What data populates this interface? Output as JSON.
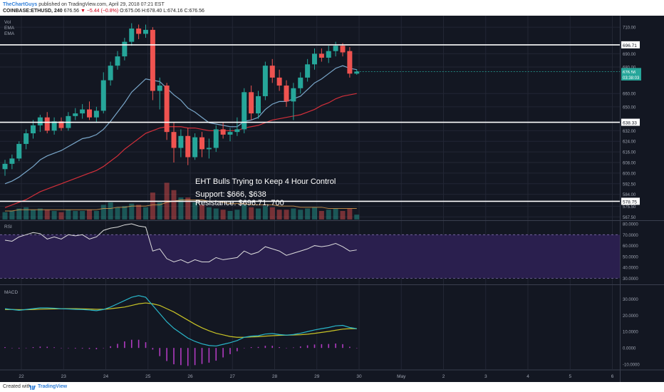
{
  "header": {
    "author": "TheChartGuys",
    "published_text": "published on TradingView.com, April 29, 2018 07:21 EST",
    "symbol": "COINBASE:ETHUSD, 240",
    "last": "676.56",
    "change": "▼ −5.44 (−0.8%)",
    "ohlc": "O:675.06  H:678.40  L:674.16  C:676.56"
  },
  "footer": {
    "created_label": "Created with",
    "brand": "TradingView"
  },
  "colors": {
    "background": "#131722",
    "grid": "#232734",
    "up": "#26a69a",
    "down": "#ef5350",
    "ema_fast": "#79a6c9",
    "ema_slow": "#d22f3a",
    "rsi_line": "#dddddd",
    "rsi_band": "#2a1f4e",
    "macd_line": "#29b6c9",
    "signal_line": "#c8c326",
    "histogram": "#b03ac0"
  },
  "chart_data": [
    {
      "type": "candlestick",
      "pane": "price",
      "series_labels": [
        "Vol",
        "EMA",
        "EMA"
      ],
      "title": "EHT Bulls Trying to Keep 4 Hour Control",
      "annotations": [
        "Support: $666, $638",
        "Resistance: $696.71, 700"
      ],
      "ylim": [
        565,
        716
      ],
      "y_ticks": [
        {
          "value": 710,
          "label": "710.00"
        },
        {
          "value": 690,
          "label": "690.00"
        },
        {
          "value": 680,
          "label": "680.00"
        },
        {
          "value": 660,
          "label": "660.00"
        },
        {
          "value": 650,
          "label": "650.00"
        },
        {
          "value": 632,
          "label": "632.00"
        },
        {
          "value": 624,
          "label": "624.00"
        },
        {
          "value": 616,
          "label": "616.00"
        },
        {
          "value": 608,
          "label": "608.00"
        },
        {
          "value": 600,
          "label": "600.00"
        },
        {
          "value": 592,
          "label": "592.50"
        },
        {
          "value": 584,
          "label": "584.00"
        },
        {
          "value": 575,
          "label": "575.50"
        },
        {
          "value": 567,
          "label": "567.50"
        }
      ],
      "horizontal_lines": [
        {
          "value": 696.71,
          "label": "696.71"
        },
        {
          "value": 638.33,
          "label": "638.33"
        },
        {
          "value": 578.75,
          "label": "578.75"
        }
      ],
      "price_labels": [
        {
          "value": 676.56,
          "label": "676.56"
        },
        {
          "value": 672.5,
          "label": "03:38:03"
        }
      ],
      "x_ticks": [
        "22",
        "23",
        "24",
        "25",
        "26",
        "27",
        "28",
        "29",
        "30",
        "May",
        "2",
        "3",
        "4",
        "5",
        "6"
      ],
      "candles": [
        {
          "o": 603,
          "h": 610,
          "l": 598,
          "c": 607
        },
        {
          "o": 607,
          "h": 614,
          "l": 603,
          "c": 611
        },
        {
          "o": 611,
          "h": 624,
          "l": 609,
          "c": 622
        },
        {
          "o": 622,
          "h": 633,
          "l": 618,
          "c": 630
        },
        {
          "o": 630,
          "h": 640,
          "l": 626,
          "c": 636
        },
        {
          "o": 636,
          "h": 644,
          "l": 631,
          "c": 642
        },
        {
          "o": 642,
          "h": 646,
          "l": 630,
          "c": 632
        },
        {
          "o": 632,
          "h": 642,
          "l": 629,
          "c": 639
        },
        {
          "o": 639,
          "h": 642,
          "l": 632,
          "c": 634
        },
        {
          "o": 634,
          "h": 646,
          "l": 632,
          "c": 643
        },
        {
          "o": 643,
          "h": 649,
          "l": 640,
          "c": 645
        },
        {
          "o": 645,
          "h": 652,
          "l": 641,
          "c": 648
        },
        {
          "o": 648,
          "h": 654,
          "l": 640,
          "c": 642
        },
        {
          "o": 642,
          "h": 650,
          "l": 638,
          "c": 647
        },
        {
          "o": 647,
          "h": 676,
          "l": 645,
          "c": 670
        },
        {
          "o": 670,
          "h": 684,
          "l": 666,
          "c": 681
        },
        {
          "o": 681,
          "h": 692,
          "l": 678,
          "c": 688
        },
        {
          "o": 688,
          "h": 702,
          "l": 685,
          "c": 699
        },
        {
          "o": 699,
          "h": 713,
          "l": 696,
          "c": 709
        },
        {
          "o": 709,
          "h": 712,
          "l": 701,
          "c": 705
        },
        {
          "o": 705,
          "h": 712,
          "l": 702,
          "c": 708
        },
        {
          "o": 708,
          "h": 710,
          "l": 655,
          "c": 662
        },
        {
          "o": 662,
          "h": 672,
          "l": 648,
          "c": 666
        },
        {
          "o": 666,
          "h": 668,
          "l": 625,
          "c": 631
        },
        {
          "o": 631,
          "h": 638,
          "l": 608,
          "c": 619
        },
        {
          "o": 619,
          "h": 633,
          "l": 612,
          "c": 628
        },
        {
          "o": 628,
          "h": 634,
          "l": 606,
          "c": 612
        },
        {
          "o": 612,
          "h": 630,
          "l": 610,
          "c": 627
        },
        {
          "o": 627,
          "h": 631,
          "l": 612,
          "c": 618
        },
        {
          "o": 618,
          "h": 626,
          "l": 611,
          "c": 619
        },
        {
          "o": 619,
          "h": 636,
          "l": 616,
          "c": 633
        },
        {
          "o": 633,
          "h": 638,
          "l": 626,
          "c": 629
        },
        {
          "o": 629,
          "h": 634,
          "l": 624,
          "c": 631
        },
        {
          "o": 631,
          "h": 642,
          "l": 628,
          "c": 633
        },
        {
          "o": 633,
          "h": 664,
          "l": 630,
          "c": 661
        },
        {
          "o": 661,
          "h": 666,
          "l": 640,
          "c": 645
        },
        {
          "o": 645,
          "h": 662,
          "l": 641,
          "c": 658
        },
        {
          "o": 658,
          "h": 684,
          "l": 655,
          "c": 681
        },
        {
          "o": 681,
          "h": 686,
          "l": 668,
          "c": 672
        },
        {
          "o": 672,
          "h": 678,
          "l": 662,
          "c": 666
        },
        {
          "o": 666,
          "h": 670,
          "l": 650,
          "c": 654
        },
        {
          "o": 654,
          "h": 668,
          "l": 640,
          "c": 664
        },
        {
          "o": 664,
          "h": 676,
          "l": 660,
          "c": 672
        },
        {
          "o": 672,
          "h": 686,
          "l": 669,
          "c": 682
        },
        {
          "o": 682,
          "h": 694,
          "l": 678,
          "c": 690
        },
        {
          "o": 690,
          "h": 694,
          "l": 684,
          "c": 687
        },
        {
          "o": 687,
          "h": 696,
          "l": 683,
          "c": 692
        },
        {
          "o": 692,
          "h": 699,
          "l": 688,
          "c": 696
        },
        {
          "o": 696,
          "h": 698,
          "l": 688,
          "c": 691
        },
        {
          "o": 692,
          "h": 695,
          "l": 672,
          "c": 675
        },
        {
          "o": 675,
          "h": 678.4,
          "l": 674.16,
          "c": 676.56
        }
      ],
      "ema_fast": [
        592,
        594,
        597,
        601,
        605,
        610,
        613,
        615,
        617,
        620,
        623,
        626,
        627,
        629,
        633,
        639,
        646,
        653,
        661,
        666,
        671,
        670,
        669,
        664,
        659,
        655,
        649,
        646,
        642,
        638,
        637,
        636,
        635,
        635,
        639,
        640,
        642,
        648,
        652,
        654,
        654,
        656,
        658,
        663,
        668,
        671,
        675,
        679,
        681,
        679,
        678
      ],
      "ema_slow": [
        574,
        576,
        578,
        580,
        583,
        586,
        588,
        590,
        592,
        594,
        596,
        598,
        600,
        602,
        605,
        609,
        613,
        618,
        622,
        626,
        630,
        632,
        634,
        635,
        635,
        635,
        634,
        634,
        633,
        632,
        632,
        632,
        632,
        632,
        634,
        635,
        636,
        638,
        640,
        641,
        642,
        643,
        644,
        646,
        648,
        651,
        653,
        656,
        658,
        659,
        660
      ],
      "volume": [
        6,
        7,
        9,
        10,
        8,
        9,
        8,
        7,
        6,
        8,
        7,
        7,
        8,
        7,
        12,
        14,
        10,
        11,
        13,
        12,
        10,
        22,
        14,
        30,
        24,
        18,
        18,
        14,
        12,
        10,
        9,
        8,
        7,
        8,
        12,
        10,
        9,
        11,
        10,
        8,
        8,
        9,
        8,
        9,
        10,
        7,
        8,
        9,
        7,
        9,
        4
      ],
      "volume_avg": [
        7,
        7,
        8,
        8,
        8,
        8,
        8,
        8,
        8,
        8,
        8,
        8,
        8,
        8,
        9,
        9,
        10,
        10,
        11,
        11,
        11,
        12,
        12,
        14,
        15,
        16,
        16,
        16,
        16,
        15,
        15,
        14,
        13,
        13,
        13,
        12,
        12,
        12,
        12,
        11,
        11,
        11,
        10,
        10,
        10,
        10,
        9,
        9,
        9,
        9,
        9
      ]
    },
    {
      "type": "line",
      "pane": "rsi",
      "label": "RSI",
      "ylim": [
        25,
        82
      ],
      "band": [
        30,
        70
      ],
      "y_ticks": [
        {
          "value": 80,
          "label": "80.0000"
        },
        {
          "value": 70,
          "label": "70.0000"
        },
        {
          "value": 60,
          "label": "60.0000"
        },
        {
          "value": 50,
          "label": "50.0000"
        },
        {
          "value": 40,
          "label": "40.0000"
        },
        {
          "value": 30,
          "label": "30.0000"
        }
      ],
      "values": [
        65,
        64,
        68,
        70,
        72,
        71,
        66,
        68,
        66,
        70,
        69,
        70,
        66,
        68,
        74,
        76,
        77,
        79,
        80,
        78,
        77,
        55,
        57,
        48,
        45,
        47,
        44,
        47,
        45,
        45,
        49,
        47,
        48,
        49,
        55,
        52,
        54,
        59,
        57,
        55,
        51,
        53,
        55,
        57,
        60,
        59,
        60,
        62,
        59,
        55,
        56
      ]
    },
    {
      "type": "line",
      "pane": "macd",
      "label": "MACD",
      "ylim": [
        -13,
        38
      ],
      "y_ticks": [
        {
          "value": 30,
          "label": "30.0000"
        },
        {
          "value": 20,
          "label": "20.0000"
        },
        {
          "value": 10,
          "label": "10.0000"
        },
        {
          "value": 0,
          "label": "0.0000"
        },
        {
          "value": -10,
          "label": "-10.0000"
        }
      ],
      "macd": [
        24,
        23.5,
        23,
        23.5,
        24,
        24.5,
        24.5,
        24.3,
        24,
        23.8,
        23.6,
        23.5,
        23.2,
        22.8,
        23.5,
        25,
        27,
        29,
        31,
        32,
        31,
        26,
        21,
        16,
        12,
        9,
        6,
        4,
        2.5,
        1.5,
        1.2,
        2.2,
        3.2,
        4.5,
        6.5,
        7.2,
        7.5,
        8.5,
        8.8,
        8.2,
        7.8,
        8.2,
        9,
        10,
        11,
        11.8,
        12.5,
        13.5,
        13.8,
        12.5,
        11.8
      ],
      "signal": [
        23.5,
        23.5,
        23.4,
        23.4,
        23.5,
        23.7,
        23.8,
        23.9,
        24,
        24,
        24,
        23.9,
        23.8,
        23.6,
        23.6,
        24,
        24.5,
        25,
        26,
        27,
        27.5,
        27,
        26,
        24,
        22,
        19.5,
        17,
        14.5,
        12.3,
        10.5,
        9,
        8,
        7,
        6.5,
        6.5,
        6.7,
        6.9,
        7.2,
        7.5,
        7.7,
        7.8,
        7.9,
        8.1,
        8.4,
        8.9,
        9.5,
        10.1,
        10.8,
        11.5,
        11.8,
        11.8
      ],
      "histogram": [
        0.5,
        0,
        -0.4,
        0.1,
        0.5,
        0.8,
        0.7,
        0.4,
        0,
        -0.2,
        -0.4,
        -0.4,
        -0.6,
        -0.8,
        -0.1,
        1,
        2.5,
        4,
        5,
        5,
        3.5,
        -1,
        -5,
        -8,
        -10,
        -10.5,
        -11,
        -10.5,
        -9.8,
        -9,
        -7.8,
        -5.8,
        -3.8,
        -2,
        0,
        0.5,
        0.6,
        1.3,
        1.3,
        0.5,
        0,
        0.3,
        0.9,
        1.6,
        2.1,
        2.3,
        2.4,
        2.7,
        2.3,
        0.7,
        0
      ]
    }
  ]
}
